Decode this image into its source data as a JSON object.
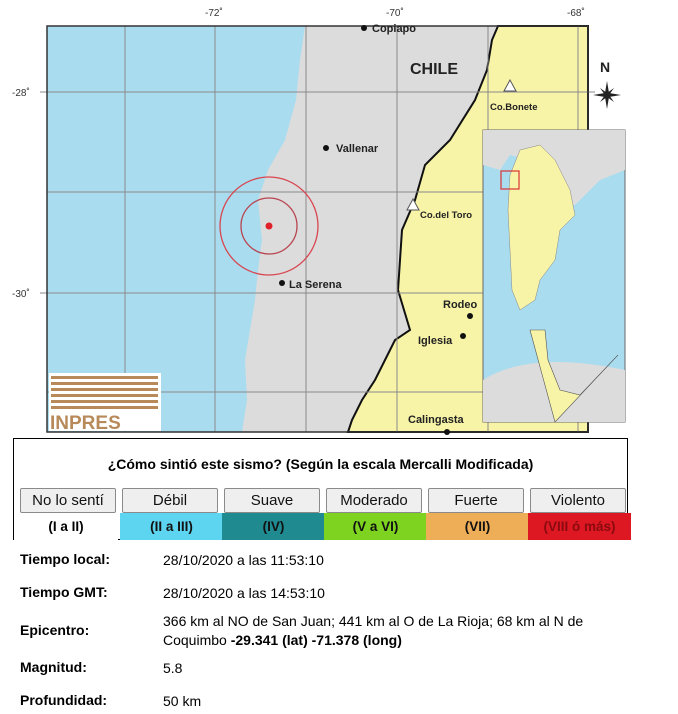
{
  "map": {
    "lon_ticks": [
      "-72˚",
      "-70˚",
      "-68˚"
    ],
    "lat_ticks": [
      "-28˚",
      "-30˚"
    ],
    "country_label": "CHILE",
    "north_label": "N",
    "cities": [
      "Copiapo",
      "Vallenar",
      "La Serena",
      "Rodeo",
      "Iglesia",
      "Calingasta"
    ],
    "peaks": [
      "Co.Bonete",
      "Co.del Toro"
    ],
    "logo": "INPRES",
    "colors": {
      "sea": "#a9dcee",
      "chile": "#dcdcdc",
      "argentina": "#f7f4a8",
      "epicenter": "#e0202a",
      "circle": "#d9454f"
    }
  },
  "scale": {
    "title": "¿Cómo sintió este sismo? (Según la escala Mercalli Modificada)",
    "buttons": [
      {
        "label": "No lo sentí",
        "level": "(I a II)",
        "color": "#ffffff",
        "text": "#000000"
      },
      {
        "label": "Débil",
        "level": "(II a III)",
        "color": "#5dd5f0",
        "text": "#111111"
      },
      {
        "label": "Suave",
        "level": "(IV)",
        "color": "#1f8a90",
        "text": "#111111"
      },
      {
        "label": "Moderado",
        "level": "(V a VI)",
        "color": "#7ed321",
        "text": "#111111"
      },
      {
        "label": "Fuerte",
        "level": "(VII)",
        "color": "#eeae57",
        "text": "#111111"
      },
      {
        "label": "Violento",
        "level": "(VIII ó más)",
        "color": "#dd1822",
        "text": "#8a0a10"
      }
    ]
  },
  "info": {
    "local_label": "Tiempo local:",
    "local_value": "28/10/2020 a las 11:53:10",
    "gmt_label": "Tiempo GMT:",
    "gmt_value": "28/10/2020 a las 14:53:10",
    "epi_label": "Epicentro:",
    "epi_text": "366 km al NO de San Juan; 441 km al O de La Rioja; 68 km al N de Coquimbo ",
    "epi_lat": "-29.341 (lat)",
    "epi_long": "-71.378 (long)",
    "mag_label": "Magnitud:",
    "mag_value": "5.8",
    "depth_label": "Profundidad:",
    "depth_value": "50 km"
  }
}
